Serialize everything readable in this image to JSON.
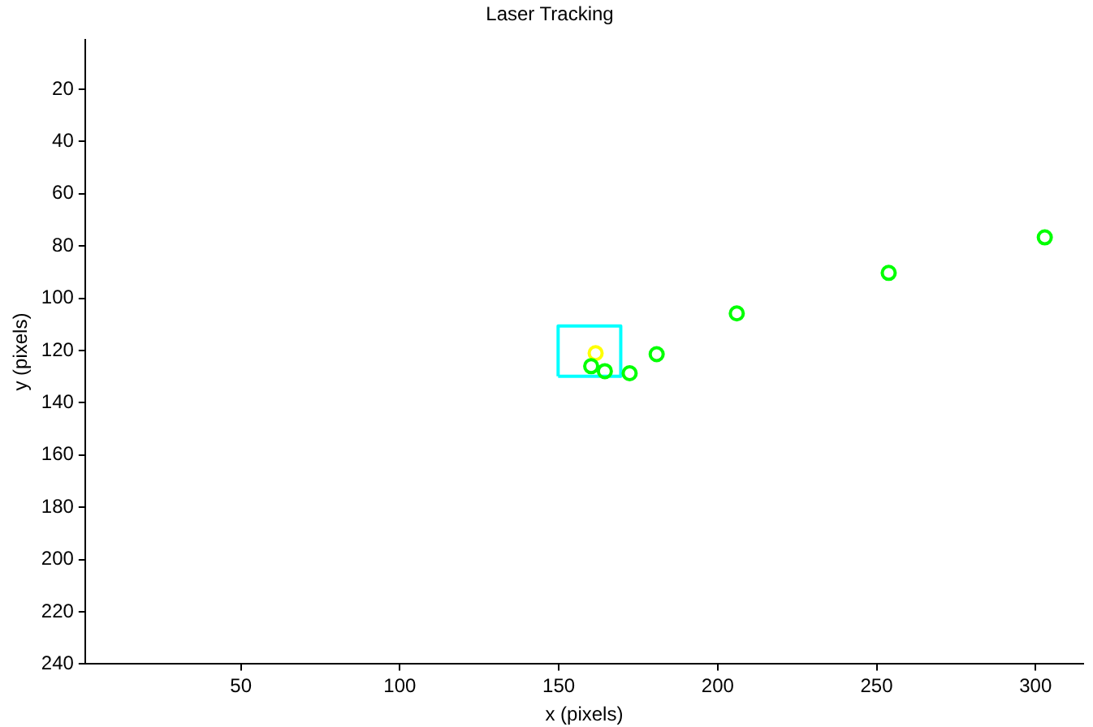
{
  "chart_data": {
    "type": "scatter",
    "title": "Laser Tracking",
    "xlabel": "x (pixels)",
    "ylabel": "y (pixels)",
    "xlim": [
      1,
      315
    ],
    "xticks": [
      50,
      100,
      150,
      200,
      250,
      300
    ],
    "ylim": [
      240,
      1
    ],
    "yticks": [
      20,
      40,
      60,
      80,
      100,
      120,
      140,
      160,
      180,
      200,
      220,
      240
    ],
    "marker": "circle",
    "legend": false,
    "series": [
      {
        "color": "#00ff00",
        "x": [
          302.9,
          253.8,
          206,
          180.8,
          172.3,
          164.5,
          160.2
        ],
        "values": [
          76.7,
          90.3,
          105.8,
          121.4,
          128.7,
          127.9,
          126
        ]
      },
      {
        "color": "#ffff00",
        "x": [
          161.6
        ],
        "values": [
          121
        ]
      },
      {
        "type": "line",
        "marker": "none",
        "color": "#00ffff",
        "x": [
          149.8,
          149.8,
          169.5,
          169.5
        ],
        "values": [
          129.9,
          110.6,
          110.6,
          129.9
        ]
      },
      {
        "type": "line",
        "marker": "none",
        "color": "#00ffff",
        "x": [
          149.8,
          169.5
        ],
        "values": [
          129.9,
          129.9
        ]
      }
    ]
  }
}
